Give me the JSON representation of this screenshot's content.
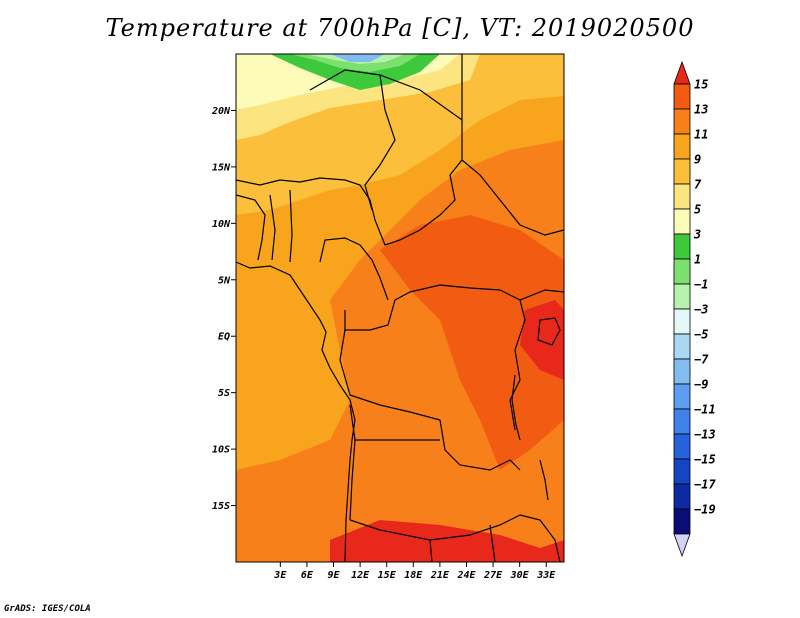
{
  "title": "Temperature at 700hPa [C], VT: 2019020500",
  "credit": "GrADS: IGES/COLA",
  "map": {
    "lon_range": [
      -2,
      35
    ],
    "lat_range": [
      -20,
      25
    ],
    "lat_ticks": [
      {
        "value": 20,
        "label": "20N"
      },
      {
        "value": 15,
        "label": "15N"
      },
      {
        "value": 10,
        "label": "10N"
      },
      {
        "value": 5,
        "label": "5N"
      },
      {
        "value": 0,
        "label": "EQ"
      },
      {
        "value": -5,
        "label": "5S"
      },
      {
        "value": -10,
        "label": "10S"
      },
      {
        "value": -15,
        "label": "15S"
      }
    ],
    "lon_ticks": [
      {
        "value": 3,
        "label": "3E"
      },
      {
        "value": 6,
        "label": "6E"
      },
      {
        "value": 9,
        "label": "9E"
      },
      {
        "value": 12,
        "label": "12E"
      },
      {
        "value": 15,
        "label": "15E"
      },
      {
        "value": 18,
        "label": "18E"
      },
      {
        "value": 21,
        "label": "21E"
      },
      {
        "value": 24,
        "label": "24E"
      },
      {
        "value": 27,
        "label": "27E"
      },
      {
        "value": 30,
        "label": "30E"
      },
      {
        "value": 33,
        "label": "33E"
      }
    ]
  },
  "colorbar": {
    "levels": [
      "15",
      "13",
      "11",
      "9",
      "7",
      "5",
      "3",
      "1",
      "−1",
      "−3",
      "−5",
      "−7",
      "−9",
      "−11",
      "−13",
      "−15",
      "−17",
      "−19"
    ],
    "colors": [
      "#e8281a",
      "#f25c12",
      "#f7801a",
      "#f8a41c",
      "#fbbf3c",
      "#fce580",
      "#fdfbb8",
      "#3ec83c",
      "#7be06e",
      "#b5f2ae",
      "#e4f8f8",
      "#aad8f2",
      "#82bcf0",
      "#5e9ef0",
      "#3f82ea",
      "#2563dc",
      "#1446c4",
      "#0c2ba2",
      "#0c0c78",
      "#d2d2f6"
    ]
  }
}
